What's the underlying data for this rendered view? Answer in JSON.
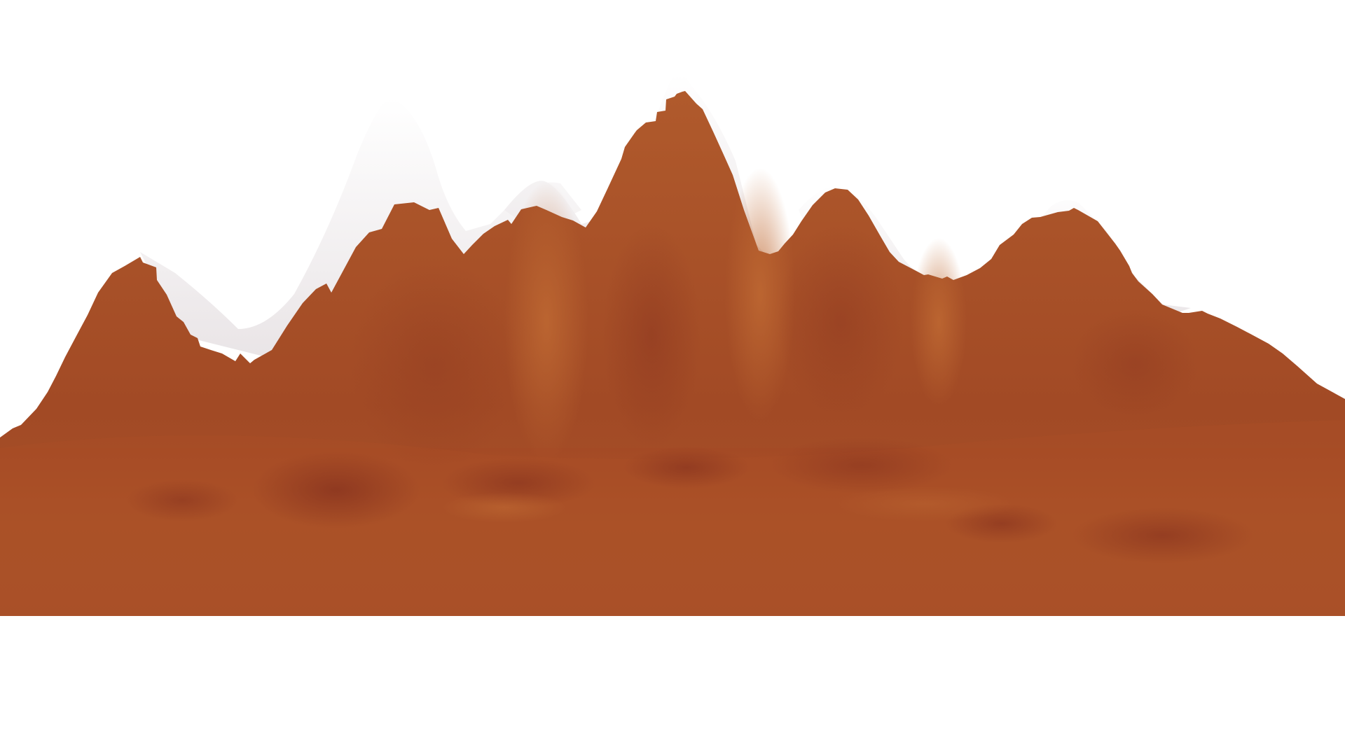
{
  "scene": {
    "subject": "terrain",
    "colors": {
      "background": "#ffffff",
      "terrain_light": "#b8622f",
      "terrain_mid": "#a6502a",
      "terrain_dark": "#8f3a1e",
      "snow": "#ffffff",
      "snow_shadow": "#ece8ea"
    }
  }
}
